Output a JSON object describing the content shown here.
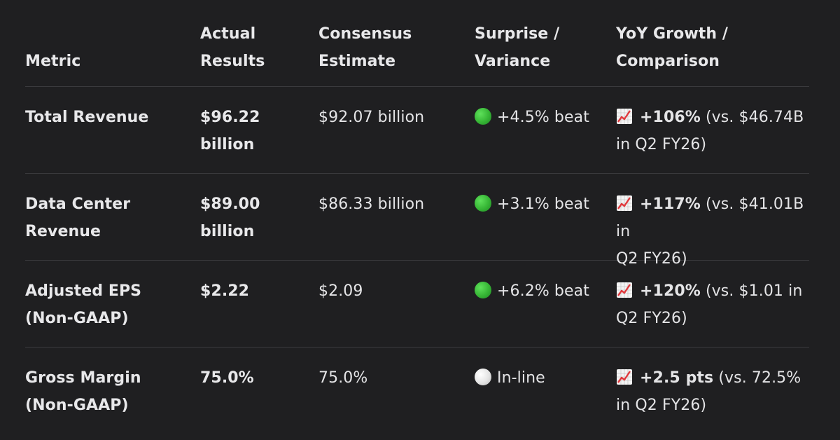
{
  "headers": {
    "metric": "Metric",
    "actual_l1": "Actual",
    "actual_l2": "Results",
    "consensus_l1": "Consensus",
    "consensus_l2": "Estimate",
    "surprise_l1": "Surprise /",
    "surprise_l2": "Variance",
    "yoy_l1": "YoY Growth /",
    "yoy_l2": "Comparison"
  },
  "rows": [
    {
      "metric_l1": "Total Revenue",
      "metric_l2": "",
      "actual_l1": "$96.22",
      "actual_l2": "billion",
      "consensus": "$92.07 billion",
      "surprise_status": "green",
      "surprise": "+4.5% beat",
      "yoy_strong": "+106%",
      "yoy_rest_l1": " (vs. $46.74B",
      "yoy_l2": "in Q2 FY26)"
    },
    {
      "metric_l1": "Data Center",
      "metric_l2": "Revenue",
      "actual_l1": "$89.00",
      "actual_l2": "billion",
      "consensus": "$86.33 billion",
      "surprise_status": "green",
      "surprise": "+3.1% beat",
      "yoy_strong": "+117%",
      "yoy_rest_l1": " (vs. $41.01B in",
      "yoy_l2": "Q2 FY26)"
    },
    {
      "metric_l1": "Adjusted EPS",
      "metric_l2": "(Non-GAAP)",
      "actual_l1": "$2.22",
      "actual_l2": "",
      "consensus": "$2.09",
      "surprise_status": "green",
      "surprise": "+6.2% beat",
      "yoy_strong": "+120%",
      "yoy_rest_l1": " (vs. $1.01 in",
      "yoy_l2": "Q2 FY26)"
    },
    {
      "metric_l1": "Gross Margin",
      "metric_l2": "(Non-GAAP)",
      "actual_l1": "75.0%",
      "actual_l2": "",
      "consensus": "75.0%",
      "surprise_status": "white",
      "surprise": "In-line",
      "yoy_strong": "+2.5 pts",
      "yoy_rest_l1": " (vs. 72.5%",
      "yoy_l2": "in Q2 FY26)"
    }
  ],
  "colors": {
    "background": "#1f1f21",
    "divider": "#3a3a3d",
    "text": "#e8e8ea",
    "status_green": "#36b535",
    "status_white": "#e4e4e4"
  },
  "icons": {
    "surprise_green": "green-circle-icon",
    "surprise_white": "white-circle-icon",
    "yoy": "chart-increasing-icon"
  }
}
